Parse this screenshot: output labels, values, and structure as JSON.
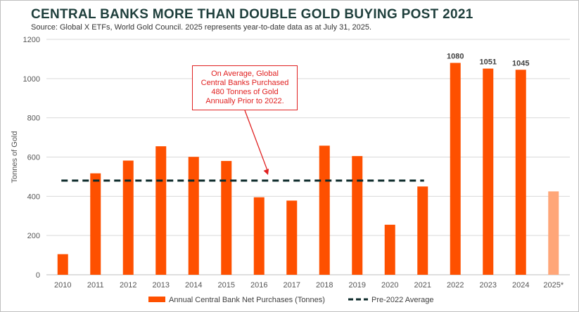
{
  "header": {
    "title": "CENTRAL BANKS MORE THAN DOUBLE GOLD BUYING POST 2021",
    "subtitle": "Source: Global X ETFs, World Gold Council. 2025 represents year-to-date data as at July 31, 2025."
  },
  "annotation": {
    "lines": [
      "On Average, Global",
      "Central Banks Purchased",
      "480 Tonnes of Gold",
      "Annually  Prior to 2022."
    ]
  },
  "colors": {
    "bar": "#fe5000",
    "bar_partial": "#ffa678",
    "average_line": "#0d2b2b",
    "annotation": "#e02020",
    "grid": "#d9d9d9"
  },
  "chart_data": {
    "type": "bar",
    "title": "CENTRAL BANKS MORE THAN DOUBLE GOLD BUYING POST 2021",
    "xlabel": "",
    "ylabel": "Tonnes of Gold",
    "ylim": [
      0,
      1200
    ],
    "yticks": [
      0,
      200,
      400,
      600,
      800,
      1000,
      1200
    ],
    "grid": true,
    "categories": [
      "2010",
      "2011",
      "2012",
      "2013",
      "2014",
      "2015",
      "2016",
      "2017",
      "2018",
      "2019",
      "2020",
      "2021",
      "2022",
      "2023",
      "2024",
      "2025*"
    ],
    "series": [
      {
        "name": "Annual Central Bank Net Purchases (Tonnes)",
        "values": [
          105,
          517,
          582,
          655,
          601,
          580,
          395,
          378,
          658,
          605,
          255,
          450,
          1080,
          1051,
          1045,
          425
        ]
      }
    ],
    "average_line": {
      "name": "Pre-2022 Average",
      "value": 480,
      "from": "2010",
      "to": "2021"
    },
    "data_labels": {
      "2022": "1080",
      "2023": "1051",
      "2024": "1045"
    },
    "legend": {
      "position": "bottom",
      "bar_label": "Annual Central Bank Net Purchases (Tonnes)",
      "line_label": "Pre-2022 Average"
    }
  }
}
